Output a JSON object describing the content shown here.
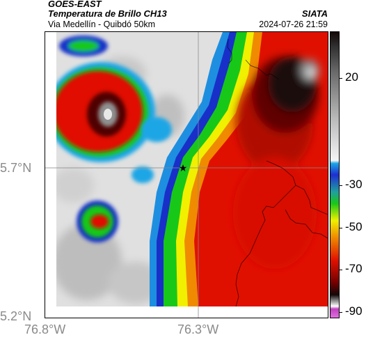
{
  "header": {
    "source": "GOES-EAST",
    "title": "Temperatura de Brillo CH13",
    "org": "SIATA",
    "subtitle": "Via Medellín - Quibdó 50km",
    "datetime": "2024-07-26 21:59"
  },
  "map": {
    "lat_labels": [
      "5.7°N",
      "5.2°N"
    ],
    "lon_labels": [
      "76.8°W",
      "76.3°W"
    ],
    "marker_icon": "star-icon"
  },
  "colorbar": {
    "labels": [
      "20",
      "-30",
      "-50",
      "-70",
      "-90"
    ],
    "colors": {
      "warm_white": "#f5f5f5",
      "grey": "#b8b8b8",
      "cyan": "#1aa6e6",
      "blue": "#1e2ed2",
      "green": "#18c818",
      "yellow": "#f0f000",
      "orange": "#f08a00",
      "red": "#e01000",
      "dark_red": "#700000",
      "black": "#140808",
      "magenta": "#c040c0"
    }
  }
}
